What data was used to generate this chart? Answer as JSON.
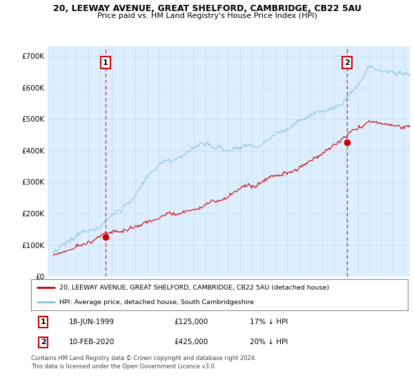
{
  "title_line1": "20, LEEWAY AVENUE, GREAT SHELFORD, CAMBRIDGE, CB22 5AU",
  "title_line2": "Price paid vs. HM Land Registry's House Price Index (HPI)",
  "ylim": [
    0,
    730000
  ],
  "yticks": [
    0,
    100000,
    200000,
    300000,
    400000,
    500000,
    600000,
    700000
  ],
  "sale1_date_num": 1999.46,
  "sale1_price": 125000,
  "sale2_date_num": 2020.11,
  "sale2_price": 425000,
  "sale1_year": "18-JUN-1999",
  "sale1_price_str": "£125,000",
  "sale1_hpi": "17% ↓ HPI",
  "sale2_year": "10-FEB-2020",
  "sale2_price_str": "£425,000",
  "sale2_hpi": "20% ↓ HPI",
  "hpi_color": "#7fbfdf",
  "sale_color": "#cc0000",
  "vline_color": "#cc0000",
  "bg_color": "#ddeeff",
  "plot_bg": "#ddeeff",
  "grid_color": "#aabbcc",
  "legend_label_sale": "20, LEEWAY AVENUE, GREAT SHELFORD, CAMBRIDGE, CB22 5AU (detached house)",
  "legend_label_hpi": "HPI: Average price, detached house, South Cambridgeshire",
  "footer": "Contains HM Land Registry data © Crown copyright and database right 2024.\nThis data is licensed under the Open Government Licence v3.0.",
  "xstart": 1994.5,
  "xend": 2025.5
}
